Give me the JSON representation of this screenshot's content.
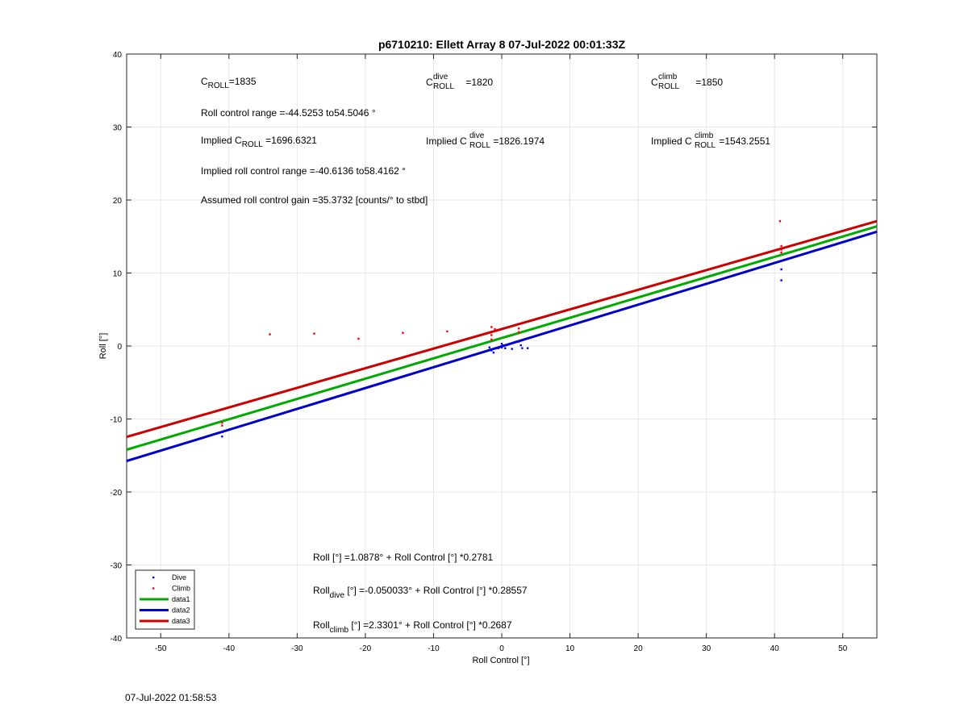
{
  "chart_data": {
    "type": "scatter",
    "title": "p6710210: Ellett Array 8 07-Jul-2022 00:01:33Z",
    "xlabel": "Roll Control [°]",
    "ylabel": "Roll [°]",
    "xlim": [
      -55,
      55
    ],
    "ylim": [
      -40,
      40
    ],
    "xticks": [
      -50,
      -40,
      -30,
      -20,
      -10,
      0,
      10,
      20,
      30,
      40,
      50
    ],
    "yticks": [
      -40,
      -30,
      -20,
      -10,
      0,
      10,
      20,
      30,
      40
    ],
    "grid": true,
    "legend_position": "bottom-left",
    "series": [
      {
        "name": "Dive",
        "kind": "points",
        "color": "#0000ff",
        "points": [
          [
            -41,
            -11.8
          ],
          [
            -41,
            -12.4
          ],
          [
            -1.8,
            -0.2
          ],
          [
            -1.5,
            -0.6
          ],
          [
            -1.2,
            -0.9
          ],
          [
            -0.5,
            -0.3
          ],
          [
            0,
            0.3
          ],
          [
            0,
            -0.2
          ],
          [
            0.2,
            0.1
          ],
          [
            0.5,
            -0.3
          ],
          [
            1,
            0.2
          ],
          [
            1.5,
            -0.4
          ],
          [
            2.5,
            0.6
          ],
          [
            2.8,
            0.1
          ],
          [
            3,
            -0.3
          ],
          [
            3.8,
            -0.3
          ],
          [
            41,
            10.5
          ],
          [
            41,
            9.0
          ]
        ]
      },
      {
        "name": "Climb",
        "kind": "points",
        "color": "#ff0000",
        "points": [
          [
            -41,
            -10.5
          ],
          [
            -41,
            -10.9
          ],
          [
            -34,
            1.6
          ],
          [
            -27.5,
            1.7
          ],
          [
            -21,
            1.0
          ],
          [
            -14.5,
            1.8
          ],
          [
            -8,
            2.0
          ],
          [
            -1.5,
            2.6
          ],
          [
            -1.5,
            1.5
          ],
          [
            -1.5,
            0.9
          ],
          [
            -1,
            2.3
          ],
          [
            2.5,
            2.4
          ],
          [
            2.5,
            1.9
          ],
          [
            40.8,
            17.1
          ],
          [
            41,
            13.7
          ],
          [
            41,
            13.2
          ],
          [
            41,
            12.8
          ]
        ]
      },
      {
        "name": "data1",
        "kind": "line",
        "color": "#00aa00",
        "intercept": 1.0878,
        "slope": 0.2781
      },
      {
        "name": "data2",
        "kind": "line",
        "color": "#0000cc",
        "intercept": -0.050033,
        "slope": 0.28557
      },
      {
        "name": "data3",
        "kind": "line",
        "color": "#cc0000",
        "intercept": 2.3301,
        "slope": 0.2687
      }
    ]
  },
  "annotations": {
    "croll": {
      "main": "C",
      "sub": "ROLL",
      "tail": "=1835"
    },
    "croll_dive": {
      "main": "C",
      "sub": "ROLL",
      "sup": "dive",
      "tail": " =1820"
    },
    "croll_climb": {
      "main": "C",
      "sub": "ROLL",
      "sup": "climb",
      "tail": " =1850"
    },
    "range": "Roll control range =-44.5253 to54.5046 °",
    "implied": {
      "main": "Implied C",
      "sub": "ROLL",
      "tail": " =1696.6321"
    },
    "implied_dive": {
      "main": "Implied C",
      "sub": "ROLL",
      "sup": "dive",
      "tail": " =1826.1974"
    },
    "implied_climb": {
      "main": "Implied C",
      "sub": "ROLL",
      "sup": "climb",
      "tail": " =1543.2551"
    },
    "implied_range": "Implied roll control range =-40.6136 to58.4162 °",
    "gain": "Assumed roll control gain =35.3732 [counts/° to stbd]",
    "fit": "Roll [°] =1.0878° + Roll Control [°] *0.2781",
    "fit_dive": {
      "main": "Roll",
      "sub": "dive",
      "tail": " [°] =-0.050033° + Roll Control [°] *0.28557"
    },
    "fit_climb": {
      "main": "Roll",
      "sub": "climb",
      "tail": " [°] =2.3301° + Roll Control [°] *0.2687"
    }
  },
  "footer_timestamp": "07-Jul-2022 01:58:53"
}
